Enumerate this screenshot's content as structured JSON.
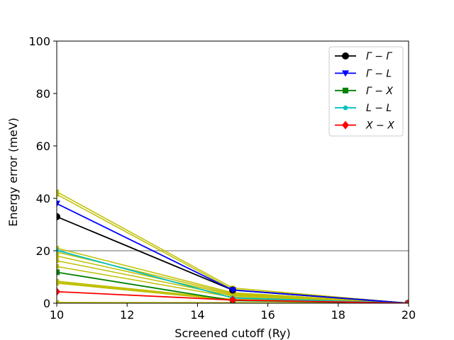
{
  "chart_data": {
    "type": "line",
    "title": "",
    "xlabel": "Screened cutoff (Ry)",
    "ylabel": "Energy error (meV)",
    "xlim": [
      10,
      20
    ],
    "ylim": [
      0,
      100
    ],
    "xticks": [
      10,
      12,
      14,
      16,
      18,
      20
    ],
    "yticks": [
      0,
      20,
      40,
      60,
      80,
      100
    ],
    "x": [
      10,
      15,
      20
    ],
    "grid": false,
    "legend_position": "top-right",
    "reference_line": {
      "y": 20,
      "color": "#b3b3b3"
    },
    "background_series": {
      "color": "#bfbf00",
      "marker": "square",
      "lines": [
        [
          42.5,
          5.8,
          0
        ],
        [
          41.5,
          5.2,
          0
        ],
        [
          21.0,
          4.0,
          0
        ],
        [
          19.5,
          3.6,
          0
        ],
        [
          18.0,
          3.2,
          0
        ],
        [
          16.2,
          2.8,
          0
        ],
        [
          14.0,
          2.3,
          0
        ],
        [
          8.4,
          1.5,
          0
        ],
        [
          8.0,
          1.3,
          0
        ],
        [
          7.6,
          1.1,
          0
        ],
        [
          0.3,
          0.2,
          0
        ]
      ]
    },
    "series": [
      {
        "name": "Γ − Γ",
        "color": "#000000",
        "marker": "circle",
        "values": [
          33.0,
          5.0,
          0
        ]
      },
      {
        "name": "Γ − L",
        "color": "#0000ff",
        "marker": "triangle-down",
        "values": [
          38.0,
          5.0,
          0
        ]
      },
      {
        "name": "Γ − X",
        "color": "#008000",
        "marker": "square",
        "values": [
          11.8,
          1.0,
          0
        ]
      },
      {
        "name": "L − L",
        "color": "#00bfbf",
        "marker": "pentagon",
        "values": [
          20.2,
          2.0,
          0
        ]
      },
      {
        "name": "X − X",
        "color": "#ff0000",
        "marker": "diamond",
        "values": [
          4.4,
          1.2,
          0
        ]
      }
    ]
  }
}
